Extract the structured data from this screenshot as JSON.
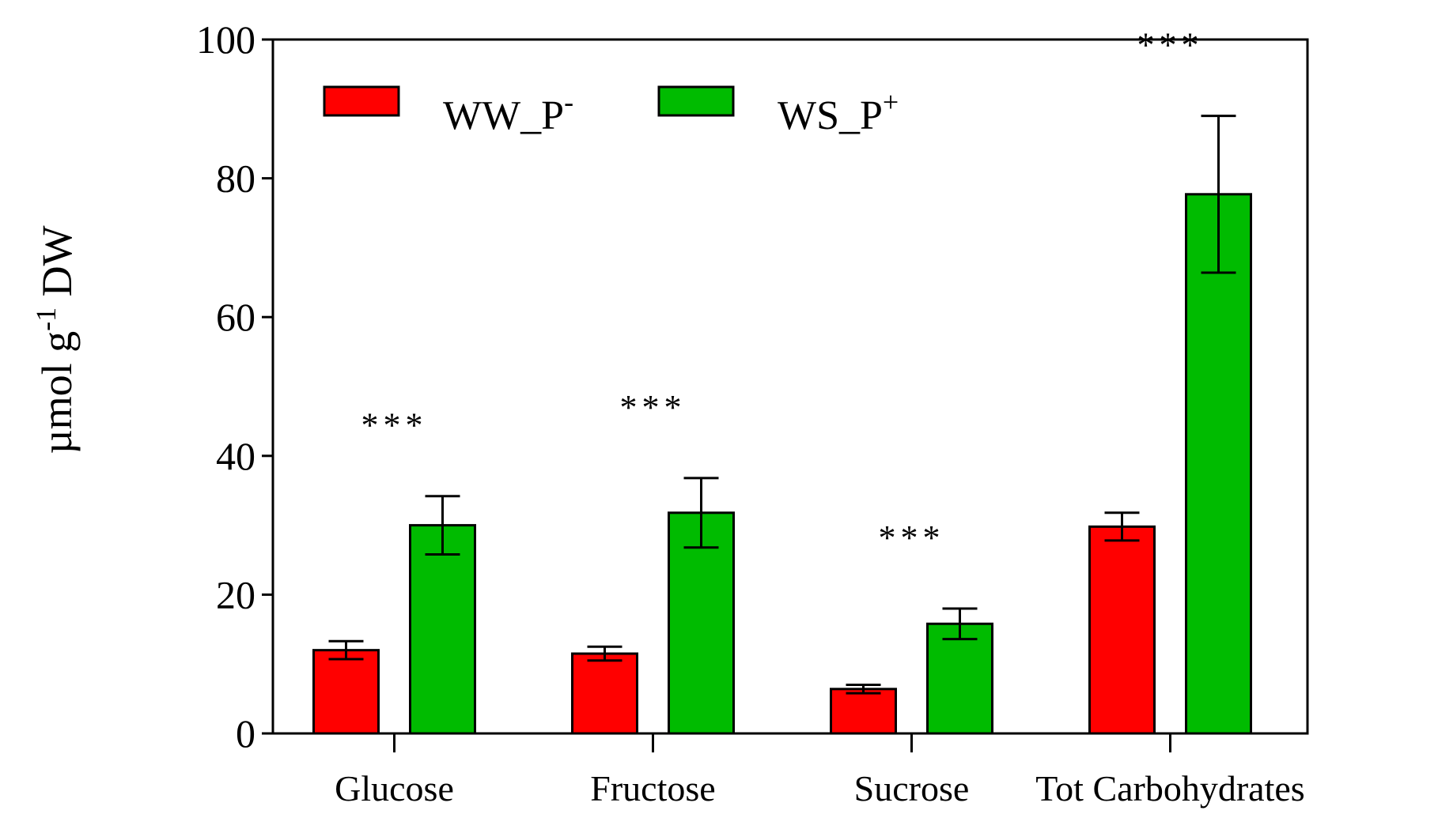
{
  "chart_data": {
    "type": "bar",
    "categories": [
      "Glucose",
      "Fructose",
      "Sucrose",
      "Tot Carbohydrates"
    ],
    "series": [
      {
        "name": "WW_P",
        "superscript": "-",
        "color": "#ff0000",
        "values": [
          12.0,
          11.5,
          6.4,
          29.8
        ],
        "errors": [
          1.3,
          1.0,
          0.6,
          2.0
        ]
      },
      {
        "name": "WS_P",
        "superscript": "+",
        "color": "#00bb00",
        "values": [
          30.0,
          31.8,
          15.8,
          77.7
        ],
        "errors": [
          4.2,
          5.0,
          2.2,
          11.3
        ]
      }
    ],
    "significance": [
      "***",
      "***",
      "***",
      "***"
    ],
    "ylabel": "µmol g",
    "ylabel_superscript": "-1",
    "ylabel_suffix": " DW",
    "xlabel": "",
    "ylim": [
      0,
      100
    ],
    "yticks": [
      0,
      20,
      40,
      60,
      80,
      100
    ],
    "grid": false,
    "legend_position": "top-left"
  }
}
